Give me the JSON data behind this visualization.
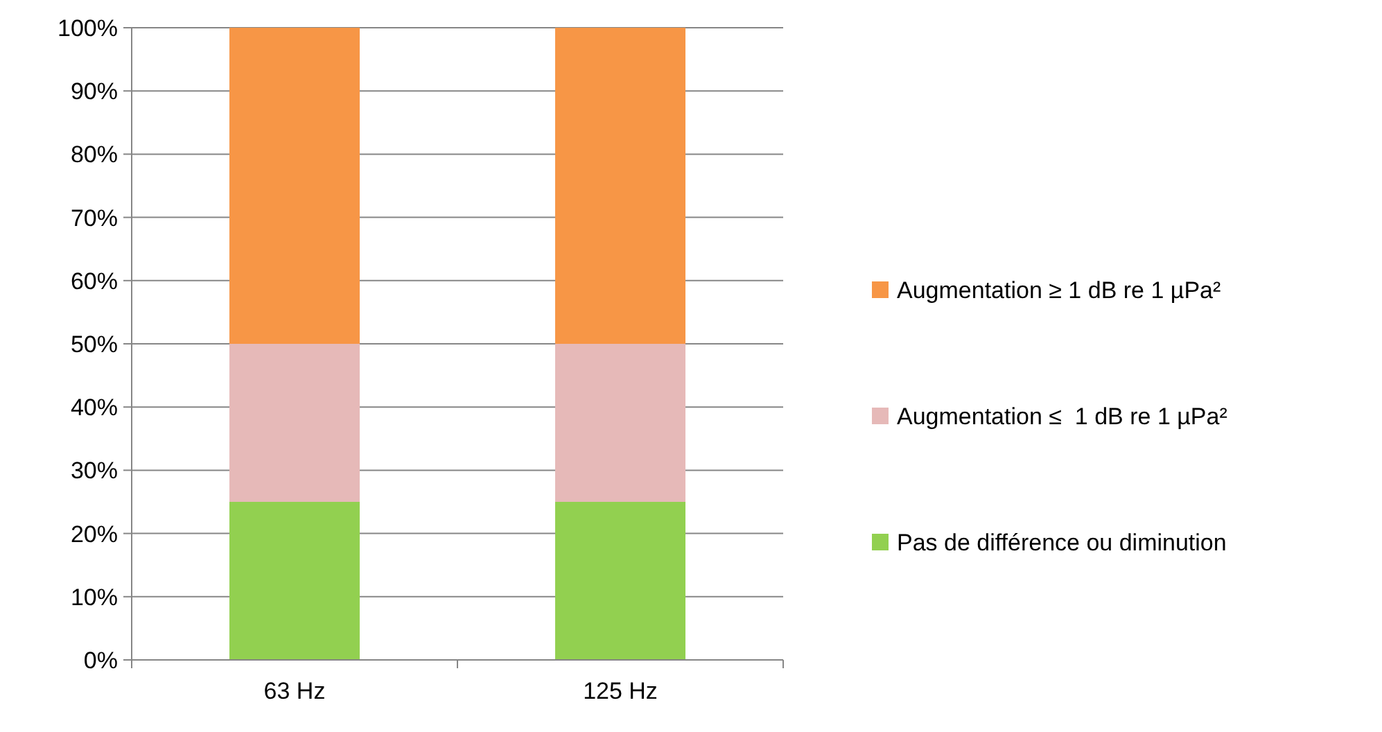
{
  "chart_data": {
    "type": "bar",
    "stacked": true,
    "categories": [
      "63 Hz",
      "125 Hz"
    ],
    "series": [
      {
        "name": "Pas de différence ou diminution",
        "color": "#92d050",
        "values": [
          25,
          25
        ]
      },
      {
        "name": "Augmentation ≤  1 dB re 1 µPa²",
        "color": "#e6b9b8",
        "values": [
          25,
          25
        ]
      },
      {
        "name": "Augmentation ≥ 1 dB re 1 µPa²",
        "color": "#f79646",
        "values": [
          50,
          50
        ]
      }
    ],
    "ylim": [
      0,
      100
    ],
    "yticks": [
      {
        "value": 0,
        "label": "0%"
      },
      {
        "value": 10,
        "label": "10%"
      },
      {
        "value": 20,
        "label": "20%"
      },
      {
        "value": 30,
        "label": "30%"
      },
      {
        "value": 40,
        "label": "40%"
      },
      {
        "value": 50,
        "label": "50%"
      },
      {
        "value": 60,
        "label": "60%"
      },
      {
        "value": 70,
        "label": "70%"
      },
      {
        "value": 80,
        "label": "80%"
      },
      {
        "value": 90,
        "label": "90%"
      },
      {
        "value": 100,
        "label": "100%"
      }
    ],
    "grid": "y",
    "legend": "right"
  }
}
